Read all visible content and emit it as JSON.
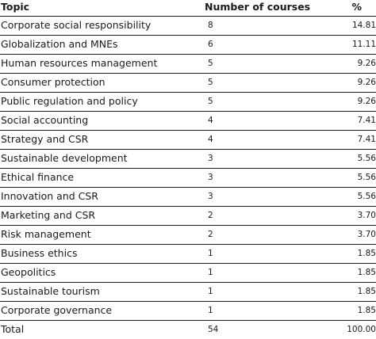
{
  "table": {
    "headers": {
      "topic": "Topic",
      "courses": "Number of courses",
      "pct": "%"
    },
    "rows": [
      {
        "topic": "Corporate social responsibility",
        "courses": "8",
        "pct": "14.81"
      },
      {
        "topic": "Globalization and MNEs",
        "courses": "6",
        "pct": "11.11"
      },
      {
        "topic": "Human resources management",
        "courses": "5",
        "pct": "9.26"
      },
      {
        "topic": "Consumer protection",
        "courses": "5",
        "pct": "9.26"
      },
      {
        "topic": "Public regulation and policy",
        "courses": "5",
        "pct": "9.26"
      },
      {
        "topic": "Social accounting",
        "courses": "4",
        "pct": "7.41"
      },
      {
        "topic": "Strategy and CSR",
        "courses": "4",
        "pct": "7.41"
      },
      {
        "topic": "Sustainable development",
        "courses": "3",
        "pct": "5.56"
      },
      {
        "topic": "Ethical finance",
        "courses": "3",
        "pct": "5.56"
      },
      {
        "topic": "Innovation and CSR",
        "courses": "3",
        "pct": "5.56"
      },
      {
        "topic": "Marketing and CSR",
        "courses": "2",
        "pct": "3.70"
      },
      {
        "topic": "Risk management",
        "courses": "2",
        "pct": "3.70"
      },
      {
        "topic": "Business ethics",
        "courses": "1",
        "pct": "1.85"
      },
      {
        "topic": "Geopolitics",
        "courses": "1",
        "pct": "1.85"
      },
      {
        "topic": "Sustainable tourism",
        "courses": "1",
        "pct": "1.85"
      },
      {
        "topic": "Corporate governance",
        "courses": "1",
        "pct": "1.85"
      }
    ],
    "total": {
      "topic": "Total",
      "courses": "54",
      "pct": "100.00"
    }
  }
}
